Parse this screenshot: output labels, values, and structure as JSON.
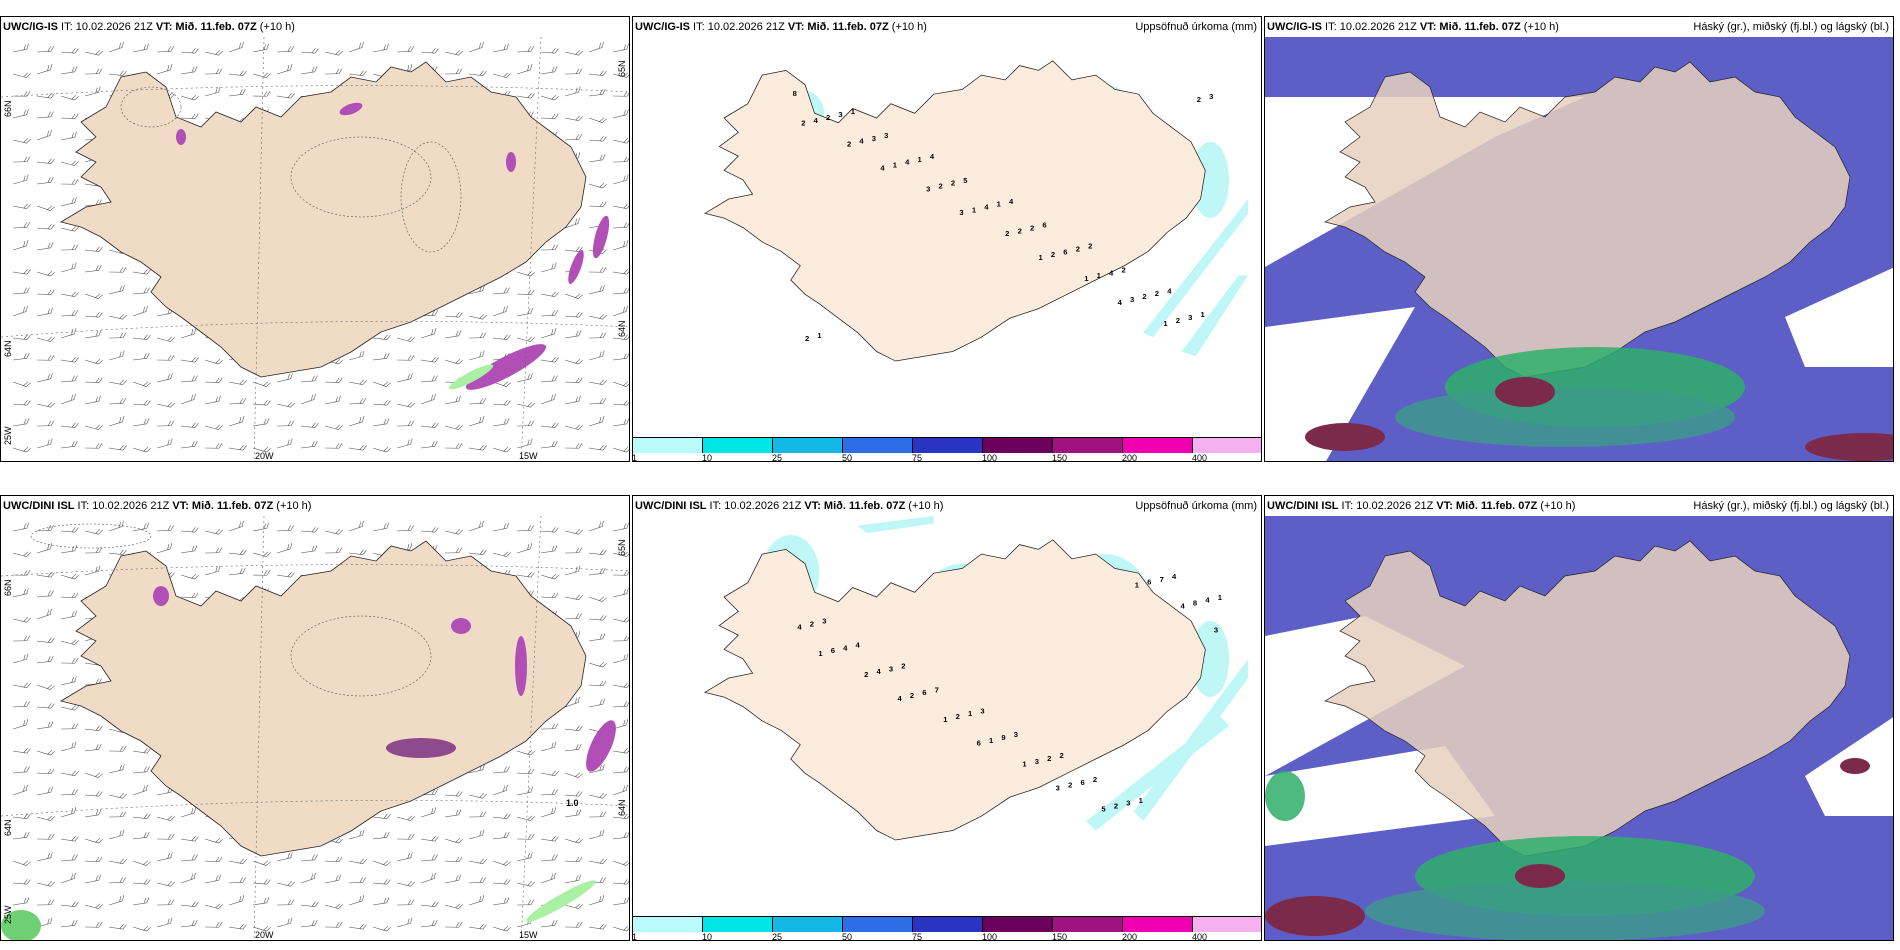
{
  "rows": [
    {
      "model": "UWC/IG-IS",
      "panels": [
        {
          "title_rest_prefix": " IT: 10.02.2026 21Z ",
          "vt_label": "VT: Mið. 11.feb. 07Z",
          "lead": " (+10 h)",
          "right_title": ""
        },
        {
          "title_rest_prefix": " IT: 10.02.2026 21Z ",
          "vt_label": "VT: Mið. 11.feb. 07Z",
          "lead": " (+10 h)",
          "right_title": "Uppsöfnuð úrkoma (mm)"
        },
        {
          "title_rest_prefix": " IT: 10.02.2026 21Z ",
          "vt_label": "VT: Mið. 11.feb. 07Z",
          "lead": " (+10 h)",
          "right_title": "Háský (gr.), miðský (fj.bl.) og lágský (bl.)"
        }
      ]
    },
    {
      "model": "UWC/DINI ISL",
      "panels": [
        {
          "title_rest_prefix": " IT: 10.02.2026 21Z ",
          "vt_label": "VT: Mið. 11.feb. 07Z",
          "lead": " (+10 h)",
          "right_title": ""
        },
        {
          "title_rest_prefix": " IT: 10.02.2026 21Z ",
          "vt_label": "VT: Mið. 11.feb. 07Z",
          "lead": " (+10 h)",
          "right_title": "Uppsöfnuð úrkoma (mm)"
        },
        {
          "title_rest_prefix": " IT: 10.02.2026 21Z ",
          "vt_label": "VT: Mið. 11.feb. 07Z",
          "lead": " (+10 h)",
          "right_title": "Háský (gr.), miðský (fj.bl.) og lágský (bl.)"
        }
      ]
    }
  ],
  "grid_labels": {
    "lat_66": "66N",
    "lat_64": "64N",
    "lat_65": "65N",
    "lon_25": "25W",
    "lon_20": "20W",
    "lon_15": "15W"
  },
  "dini_annotation": "1.0",
  "colorbar": {
    "ticks": [
      "1",
      "10",
      "25",
      "50",
      "75",
      "100",
      "150",
      "200",
      "400"
    ],
    "colors": [
      "#b9fbfb",
      "#00e5e5",
      "#13b8e6",
      "#2d6ee6",
      "#2a34c2",
      "#6b005c",
      "#a0127f",
      "#f000b0",
      "#f5b0f0"
    ]
  },
  "precip_values_top": [
    "2",
    "4",
    "3",
    "1",
    "4",
    "2",
    "2",
    "3",
    "2",
    "1",
    "1",
    "4",
    "1",
    "1",
    "2",
    "3",
    "3",
    "4",
    "2",
    "2",
    "1",
    "2",
    "2",
    "4",
    "4",
    "6",
    "2",
    "8",
    "3",
    "2",
    "2",
    "4",
    "3",
    "3",
    "1",
    "1",
    "2",
    "2",
    "2",
    "3",
    "5",
    "6",
    "2",
    "1",
    "1",
    "4",
    "4",
    "2",
    "4",
    "1"
  ],
  "precip_values_bottom": [
    "1",
    "4",
    "6",
    "3",
    "1",
    "3",
    "2",
    "1",
    "1",
    "5",
    "4",
    "6",
    "2",
    "1",
    "2",
    "6",
    "4",
    "4",
    "2",
    "3",
    "2",
    "8",
    "4",
    "6",
    "9",
    "6",
    "7",
    "2",
    "3",
    "1",
    "2",
    "3",
    "4",
    "4",
    "7",
    "3",
    "2",
    "4",
    "3",
    "2",
    "3",
    "2",
    "1",
    "1"
  ],
  "colors": {
    "land": "#f3e4d2",
    "cyan_precip": "#bff6f6",
    "cloud_high": "#5d5fc6",
    "cloud_mid": "#2fae6a",
    "cloud_low": "#7c2a4b"
  }
}
